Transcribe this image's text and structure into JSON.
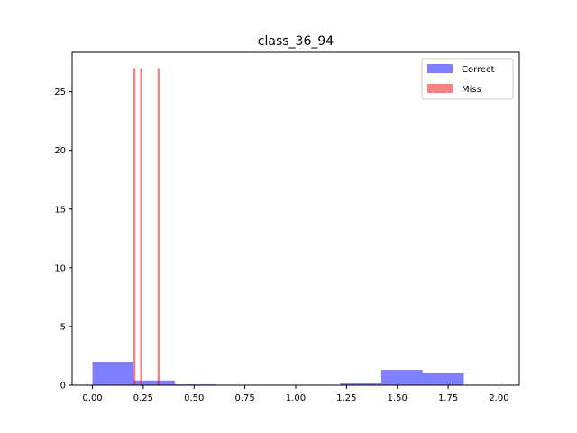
{
  "chart_data": {
    "type": "histogram",
    "title": "class_36_94",
    "xlabel": "",
    "ylabel": "",
    "xlim": [
      -0.1,
      2.1
    ],
    "ylim": [
      0,
      28.35
    ],
    "x_ticks": [
      {
        "value": 0.0,
        "label": "0.00"
      },
      {
        "value": 0.25,
        "label": "0.25"
      },
      {
        "value": 0.5,
        "label": "0.50"
      },
      {
        "value": 0.75,
        "label": "0.75"
      },
      {
        "value": 1.0,
        "label": "1.00"
      },
      {
        "value": 1.25,
        "label": "1.25"
      },
      {
        "value": 1.5,
        "label": "1.50"
      },
      {
        "value": 1.75,
        "label": "1.75"
      },
      {
        "value": 2.0,
        "label": "2.00"
      }
    ],
    "y_ticks": [
      {
        "value": 0,
        "label": "0"
      },
      {
        "value": 5,
        "label": "5"
      },
      {
        "value": 10,
        "label": "10"
      },
      {
        "value": 15,
        "label": "15"
      },
      {
        "value": 20,
        "label": "20"
      },
      {
        "value": 25,
        "label": "25"
      }
    ],
    "grid": false,
    "legend_position": "top-right",
    "series": [
      {
        "name": "Correct",
        "color": "#0000ff",
        "alpha": 0.5,
        "bins": [
          {
            "x0": 0.0,
            "x1": 0.203,
            "value": 2.0
          },
          {
            "x0": 0.203,
            "x1": 0.406,
            "value": 0.4
          },
          {
            "x0": 0.406,
            "x1": 0.609,
            "value": 0.07
          },
          {
            "x0": 0.609,
            "x1": 0.812,
            "value": 0.0
          },
          {
            "x0": 0.812,
            "x1": 1.015,
            "value": 0.0
          },
          {
            "x0": 1.015,
            "x1": 1.218,
            "value": 0.0
          },
          {
            "x0": 1.218,
            "x1": 1.421,
            "value": 0.15
          },
          {
            "x0": 1.421,
            "x1": 1.624,
            "value": 1.3
          },
          {
            "x0": 1.624,
            "x1": 1.827,
            "value": 1.0
          }
        ]
      },
      {
        "name": "Miss",
        "color": "#ff0000",
        "alpha": 0.5,
        "bins": [
          {
            "x0": 0.2,
            "x1": 0.2115,
            "value": 27.0
          },
          {
            "x0": 0.2345,
            "x1": 0.246,
            "value": 27.0
          },
          {
            "x0": 0.32,
            "x1": 0.3315,
            "value": 27.0
          }
        ]
      }
    ]
  }
}
